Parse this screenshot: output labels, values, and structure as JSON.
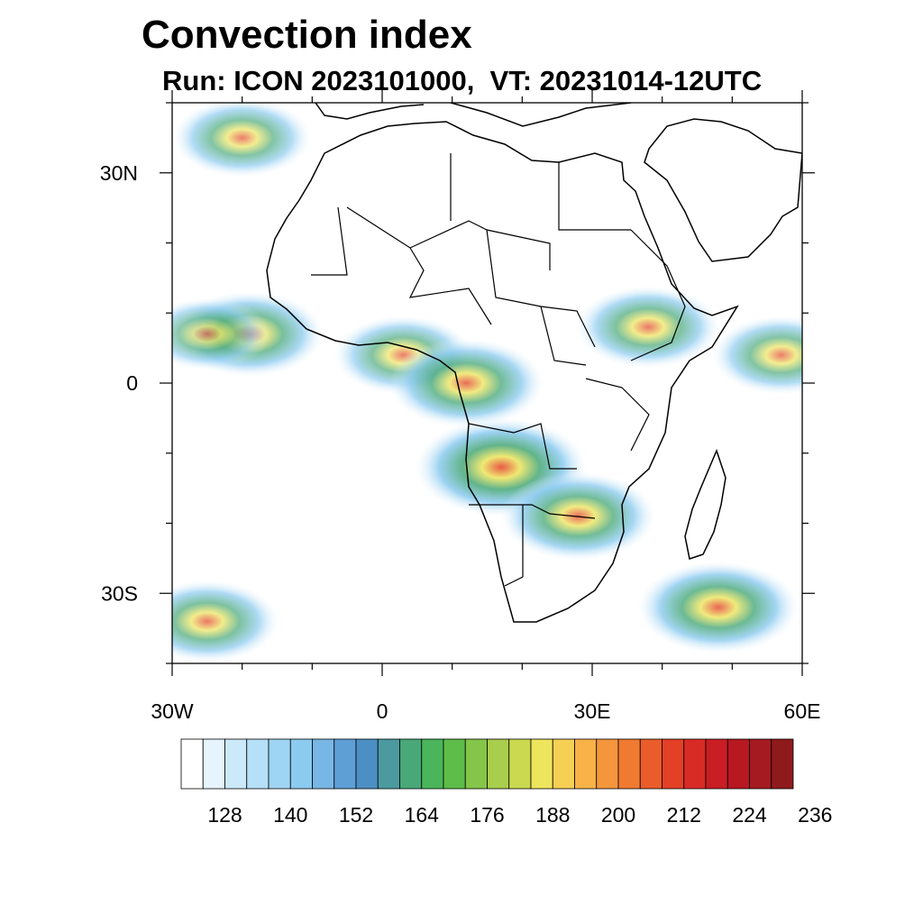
{
  "title": "Convection index",
  "subtitle": "Run: ICON 2023101000,  VT: 20231014-12UTC",
  "map": {
    "lon_range": [
      -30,
      60
    ],
    "lat_range": [
      -40,
      40
    ],
    "lat_tick_labels": [
      {
        "lat": 30,
        "text": "30N"
      },
      {
        "lat": 0,
        "text": "0"
      },
      {
        "lat": -30,
        "text": "30S"
      }
    ],
    "lon_tick_labels": [
      {
        "lon": -30,
        "text": "30W"
      },
      {
        "lon": 0,
        "text": "0"
      },
      {
        "lon": 30,
        "text": "30E"
      },
      {
        "lon": 60,
        "text": "60E"
      }
    ],
    "minor_lon_ticks": [
      -30,
      -20,
      -10,
      0,
      10,
      20,
      30,
      40,
      50,
      60
    ],
    "minor_lat_ticks": [
      40,
      30,
      20,
      10,
      0,
      -10,
      -20,
      -30,
      -40
    ],
    "coastline_color": "#000000",
    "frame_color": "#000000",
    "features": [
      {
        "name": "north-atlantic-band",
        "lon": -20,
        "lat": 35,
        "intensity": 0.55
      },
      {
        "name": "west-africa-coast-cells",
        "lon": -19,
        "lat": 7,
        "intensity": 0.65
      },
      {
        "name": "atlantic-itcz",
        "lon": -25,
        "lat": 7,
        "intensity": 0.45
      },
      {
        "name": "gulf-of-guinea-cells",
        "lon": 3,
        "lat": 4,
        "intensity": 0.55
      },
      {
        "name": "central-africa-cells",
        "lon": 12,
        "lat": 0,
        "intensity": 0.7
      },
      {
        "name": "congo-angola-cells",
        "lon": 17,
        "lat": -12,
        "intensity": 0.85
      },
      {
        "name": "zambia-cells",
        "lon": 28,
        "lat": -19,
        "intensity": 0.7
      },
      {
        "name": "ethiopia-cells",
        "lon": 38,
        "lat": 8,
        "intensity": 0.6
      },
      {
        "name": "indian-ocean-cells",
        "lon": 57,
        "lat": 4,
        "intensity": 0.55
      },
      {
        "name": "south-indian-ocean-band",
        "lon": 48,
        "lat": -32,
        "intensity": 0.75
      },
      {
        "name": "south-atlantic-band",
        "lon": -25,
        "lat": -34,
        "intensity": 0.6
      }
    ]
  },
  "colorbar": {
    "colors": [
      "#ffffff",
      "#e6f4fd",
      "#cbe9f9",
      "#b6e0f7",
      "#9fd5f4",
      "#8ccbf0",
      "#78b7e5",
      "#5e9fd6",
      "#4c8fc5",
      "#4b9aa0",
      "#48a878",
      "#4ab55a",
      "#5dbd48",
      "#85c64a",
      "#a9cd4d",
      "#cbd950",
      "#ede55c",
      "#f6cf55",
      "#f8b247",
      "#f5963c",
      "#f07a32",
      "#ea5d2a",
      "#e34026",
      "#d92b26",
      "#c81e24",
      "#b71822",
      "#a51a20",
      "#8f1a1c"
    ],
    "tick_labels": [
      "128",
      "140",
      "152",
      "164",
      "176",
      "188",
      "200",
      "212",
      "224",
      "236"
    ]
  }
}
